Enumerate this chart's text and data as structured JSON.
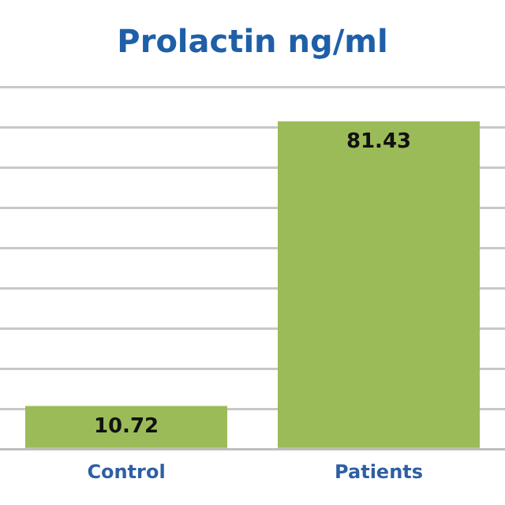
{
  "chart_data": {
    "type": "bar",
    "title": "Prolactin ng/ml",
    "categories": [
      "Control",
      "Patients"
    ],
    "values": [
      10.72,
      81.43
    ],
    "color": "#9bbb59",
    "data_labels": true,
    "ylim": [
      0,
      90
    ],
    "yticks": [
      {
        "value": 0,
        "label": null
      },
      {
        "value": 10,
        "label": null
      },
      {
        "value": 20,
        "label": null
      },
      {
        "value": 30,
        "label": null
      },
      {
        "value": 40,
        "label": null
      },
      {
        "value": 50,
        "label": null
      },
      {
        "value": 60,
        "label": null
      },
      {
        "value": 70,
        "label": null
      },
      {
        "value": 80,
        "label": null
      },
      {
        "value": 90,
        "label": null
      }
    ],
    "tick_labels": "x",
    "grid": "y",
    "legend": false
  }
}
